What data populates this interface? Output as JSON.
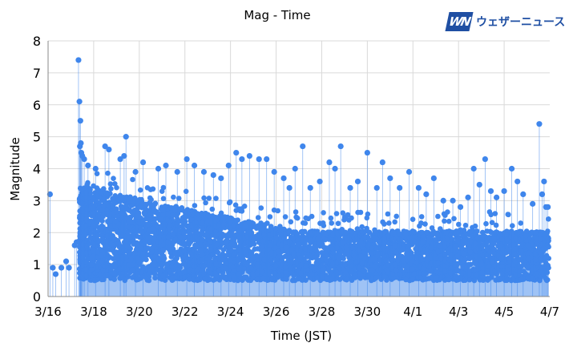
{
  "brand": {
    "mark": "WN",
    "name": "ウェザーニュース"
  },
  "colors": {
    "point": "#3f86ec",
    "stem": "#3f86ec",
    "baseline_fill": "#9fc3f5",
    "grid": "#d9d9d9"
  },
  "chart_data": {
    "type": "scatter",
    "title": "Mag - Time",
    "xlabel": "Time (JST)",
    "ylabel": "Magnitude",
    "ylim": [
      0,
      8
    ],
    "yticks": [
      0,
      1,
      2,
      3,
      4,
      5,
      6,
      7,
      8
    ],
    "xlim": [
      "2016-03-16",
      "2016-04-07"
    ],
    "xticks": [
      "3/16",
      "3/18",
      "3/20",
      "3/22",
      "3/24",
      "3/26",
      "3/28",
      "3/30",
      "4/1",
      "4/3",
      "4/5",
      "4/7"
    ],
    "grid": true,
    "style": "lollipop",
    "points": [
      [
        "2016-03-16T02:00",
        3.2
      ],
      [
        "2016-03-16T05:00",
        0.9
      ],
      [
        "2016-03-16T08:00",
        0.7
      ],
      [
        "2016-03-16T14:00",
        0.9
      ],
      [
        "2016-03-16T19:00",
        1.1
      ],
      [
        "2016-03-16T22:00",
        0.9
      ],
      [
        "2016-03-17T04:00",
        1.6
      ],
      [
        "2016-03-17T06:00",
        1.7
      ],
      [
        "2016-03-17T08:00",
        7.4
      ],
      [
        "2016-03-17T09:00",
        6.1
      ],
      [
        "2016-03-17T09:30",
        4.7
      ],
      [
        "2016-03-17T10:00",
        5.5
      ],
      [
        "2016-03-17T10:30",
        4.8
      ],
      [
        "2016-03-17T11:00",
        4.5
      ],
      [
        "2016-03-17T12:00",
        4.4
      ],
      [
        "2016-03-17T14:00",
        4.3
      ],
      [
        "2016-03-17T18:00",
        4.1
      ],
      [
        "2016-03-18T02:00",
        4.0
      ],
      [
        "2016-03-18T12:00",
        4.7
      ],
      [
        "2016-03-18T16:00",
        4.6
      ],
      [
        "2016-03-19T04:00",
        4.3
      ],
      [
        "2016-03-19T08:00",
        4.4
      ],
      [
        "2016-03-19T10:00",
        5.0
      ],
      [
        "2016-03-19T20:00",
        3.9
      ],
      [
        "2016-03-20T04:00",
        4.2
      ],
      [
        "2016-03-20T20:00",
        4.0
      ],
      [
        "2016-03-21T04:00",
        4.1
      ],
      [
        "2016-03-21T16:00",
        3.9
      ],
      [
        "2016-03-22T02:00",
        4.3
      ],
      [
        "2016-03-22T10:00",
        4.1
      ],
      [
        "2016-03-22T20:00",
        3.9
      ],
      [
        "2016-03-23T06:00",
        3.8
      ],
      [
        "2016-03-23T14:00",
        3.7
      ],
      [
        "2016-03-23T22:00",
        4.1
      ],
      [
        "2016-03-24T06:00",
        4.5
      ],
      [
        "2016-03-24T12:00",
        4.3
      ],
      [
        "2016-03-24T20:00",
        4.4
      ],
      [
        "2016-03-25T06:00",
        4.3
      ],
      [
        "2016-03-25T14:00",
        4.3
      ],
      [
        "2016-03-25T22:00",
        3.9
      ],
      [
        "2016-03-26T08:00",
        3.7
      ],
      [
        "2016-03-26T14:00",
        3.4
      ],
      [
        "2016-03-26T20:00",
        4.0
      ],
      [
        "2016-03-27T04:00",
        4.7
      ],
      [
        "2016-03-27T12:00",
        3.4
      ],
      [
        "2016-03-27T22:00",
        3.6
      ],
      [
        "2016-03-28T08:00",
        4.2
      ],
      [
        "2016-03-28T14:00",
        4.0
      ],
      [
        "2016-03-28T20:00",
        4.7
      ],
      [
        "2016-03-29T06:00",
        3.4
      ],
      [
        "2016-03-29T14:00",
        3.6
      ],
      [
        "2016-03-30T00:00",
        4.5
      ],
      [
        "2016-03-30T10:00",
        3.4
      ],
      [
        "2016-03-30T16:00",
        4.2
      ],
      [
        "2016-03-31T00:00",
        3.7
      ],
      [
        "2016-03-31T10:00",
        3.4
      ],
      [
        "2016-03-31T20:00",
        3.9
      ],
      [
        "2016-04-01T06:00",
        3.4
      ],
      [
        "2016-04-01T14:00",
        3.2
      ],
      [
        "2016-04-01T22:00",
        3.7
      ],
      [
        "2016-04-02T08:00",
        3.0
      ],
      [
        "2016-04-02T18:00",
        3.0
      ],
      [
        "2016-04-03T02:00",
        2.8
      ],
      [
        "2016-04-03T10:00",
        3.1
      ],
      [
        "2016-04-03T16:00",
        4.0
      ],
      [
        "2016-04-03T22:00",
        3.5
      ],
      [
        "2016-04-04T04:00",
        4.3
      ],
      [
        "2016-04-04T10:00",
        3.3
      ],
      [
        "2016-04-04T16:00",
        3.1
      ],
      [
        "2016-04-05T00:00",
        3.3
      ],
      [
        "2016-04-05T08:00",
        4.0
      ],
      [
        "2016-04-05T14:00",
        3.6
      ],
      [
        "2016-04-05T20:00",
        3.2
      ],
      [
        "2016-04-06T06:00",
        2.9
      ],
      [
        "2016-04-06T13:00",
        5.4
      ],
      [
        "2016-04-06T16:00",
        3.2
      ],
      [
        "2016-04-06T18:00",
        3.6
      ],
      [
        "2016-04-06T20:00",
        2.8
      ],
      [
        "2016-04-06T22:00",
        2.8
      ]
    ]
  }
}
